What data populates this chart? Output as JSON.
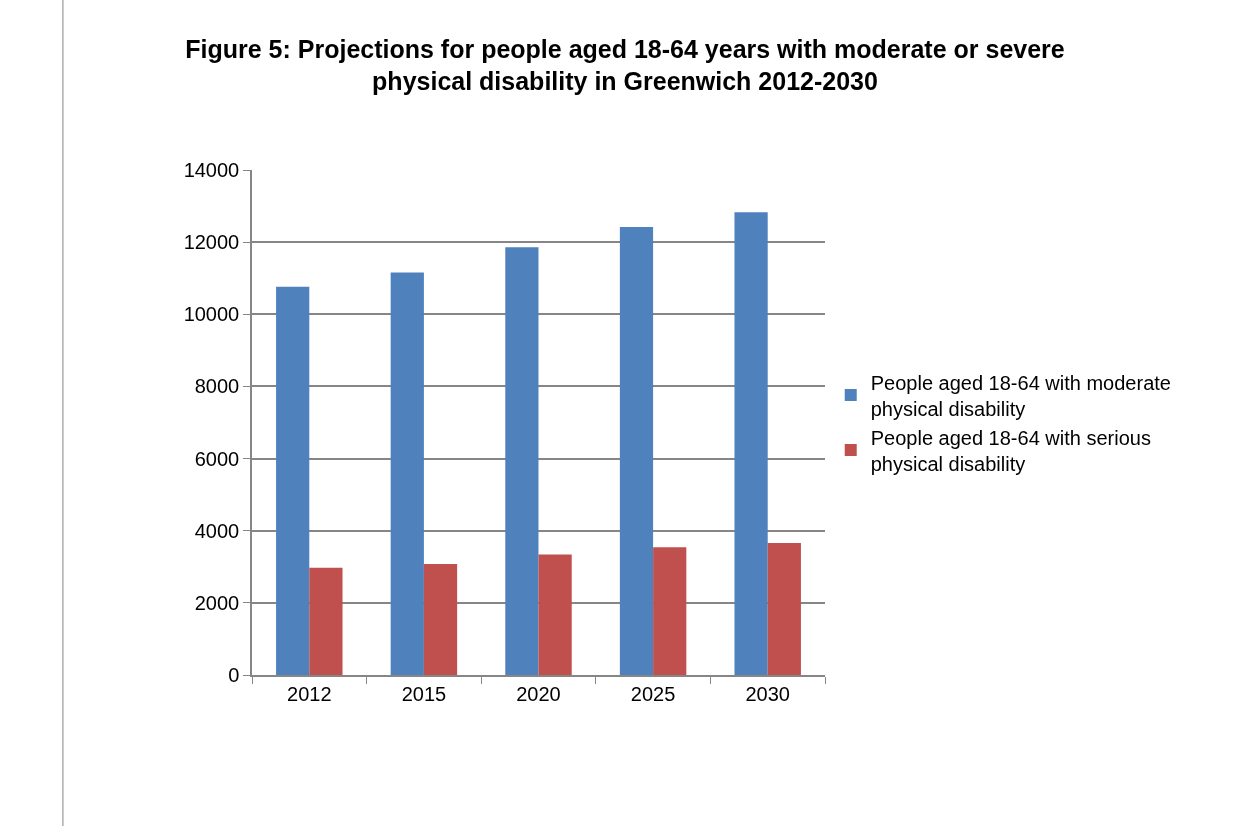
{
  "chart_data": {
    "type": "bar",
    "title": "Figure 5: Projections for people aged 18-64 years with moderate or severe physical disability in Greenwich 2012-2030",
    "categories": [
      "2012",
      "2015",
      "2020",
      "2025",
      "2030"
    ],
    "series": [
      {
        "name": "People aged 18-64 with moderate physical disability",
        "color": "#4f81bd",
        "values": [
          10760,
          11160,
          11860,
          12420,
          12830
        ]
      },
      {
        "name": "People aged 18-64 with serious physical disability",
        "color": "#c0504d",
        "values": [
          2970,
          3080,
          3340,
          3540,
          3660
        ]
      }
    ],
    "ylim": [
      0,
      14000
    ],
    "yticks": [
      0,
      2000,
      4000,
      6000,
      8000,
      10000,
      12000,
      14000
    ],
    "grid": "y",
    "legend": "right"
  }
}
